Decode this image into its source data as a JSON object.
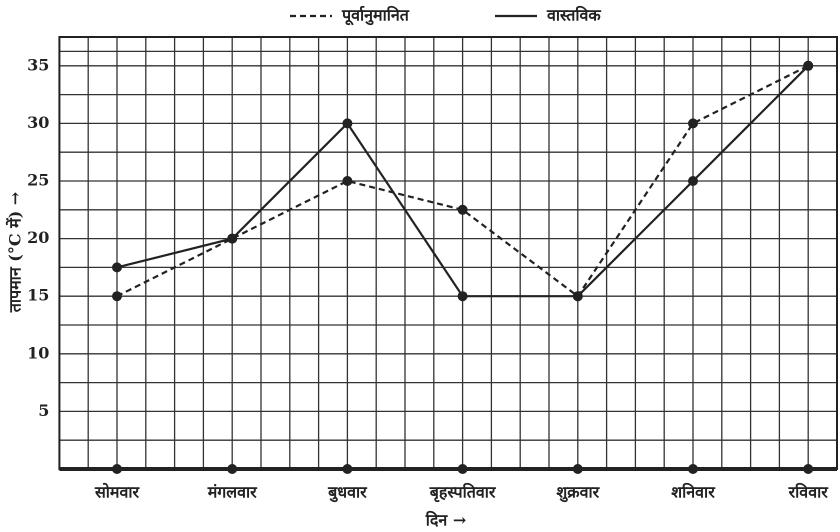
{
  "chart_data": {
    "type": "line",
    "categories": [
      "सोमवार",
      "मंगलवार",
      "बुधवार",
      "बृहस्पतिवार",
      "शुक्रवार",
      "शनिवार",
      "रविवार"
    ],
    "series": [
      {
        "name": "पूर्वानुमानित",
        "color": "#222222",
        "dash": true,
        "values": [
          15,
          20,
          25,
          22.5,
          15,
          30,
          35
        ]
      },
      {
        "name": "वास्तविक",
        "color": "#222222",
        "dash": false,
        "values": [
          17.5,
          20,
          30,
          15,
          15,
          25,
          35
        ]
      }
    ],
    "ylim": [
      0,
      37.5
    ],
    "yticks": [
      5,
      10,
      15,
      20,
      25,
      30,
      35
    ],
    "grid": true,
    "xlabel": "दिन →",
    "ylabel": "तापमान (°C में) →"
  }
}
